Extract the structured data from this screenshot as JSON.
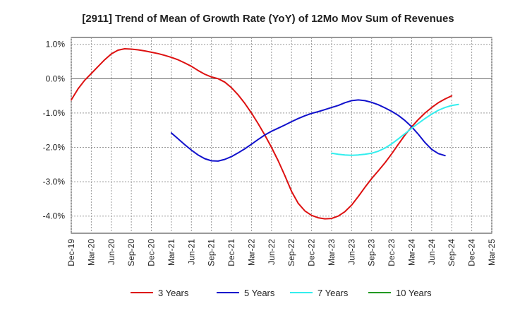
{
  "chart_data": {
    "type": "line",
    "title": "[2911]  Trend of Mean of Growth Rate (YoY) of 12Mo Mov Sum of Revenues",
    "xlabel": "",
    "ylabel": "",
    "ylim": [
      -4.5,
      1.2
    ],
    "yticks": [
      1.0,
      0.0,
      -1.0,
      -2.0,
      -3.0,
      -4.0
    ],
    "ytick_labels": [
      "1.0%",
      "0.0%",
      "-1.0%",
      "-2.0%",
      "-3.0%",
      "-4.0%"
    ],
    "x_tick_labels": [
      "Dec-19",
      "Mar-20",
      "Jun-20",
      "Sep-20",
      "Dec-20",
      "Mar-21",
      "Jun-21",
      "Sep-21",
      "Dec-21",
      "Mar-22",
      "Jun-22",
      "Sep-22",
      "Dec-22",
      "Mar-23",
      "Jun-23",
      "Sep-23",
      "Dec-23",
      "Mar-24",
      "Jun-24",
      "Sep-24",
      "Dec-24",
      "Mar-25"
    ],
    "grid": true,
    "legend_position": "bottom",
    "series": [
      {
        "name": "3 Years",
        "color": "#dd1111",
        "start_month": 0,
        "values": [
          -0.62,
          -0.3,
          -0.05,
          0.15,
          0.35,
          0.55,
          0.72,
          0.83,
          0.87,
          0.86,
          0.84,
          0.81,
          0.77,
          0.73,
          0.68,
          0.62,
          0.55,
          0.46,
          0.36,
          0.24,
          0.13,
          0.05,
          0.0,
          -0.1,
          -0.26,
          -0.47,
          -0.72,
          -1.0,
          -1.31,
          -1.64,
          -2.0,
          -2.39,
          -2.82,
          -3.28,
          -3.63,
          -3.85,
          -3.98,
          -4.05,
          -4.08,
          -4.07,
          -4.0,
          -3.87,
          -3.68,
          -3.43,
          -3.16,
          -2.91,
          -2.68,
          -2.45,
          -2.19,
          -1.91,
          -1.64,
          -1.4,
          -1.19,
          -1.0,
          -0.84,
          -0.7,
          -0.59,
          -0.5
        ]
      },
      {
        "name": "5 Years",
        "color": "#1111cc",
        "start_month": 15,
        "values": [
          -1.58,
          -1.75,
          -1.92,
          -2.08,
          -2.22,
          -2.33,
          -2.39,
          -2.4,
          -2.35,
          -2.27,
          -2.16,
          -2.04,
          -1.91,
          -1.77,
          -1.64,
          -1.53,
          -1.44,
          -1.35,
          -1.25,
          -1.16,
          -1.08,
          -1.01,
          -0.96,
          -0.9,
          -0.84,
          -0.78,
          -0.7,
          -0.64,
          -0.62,
          -0.64,
          -0.69,
          -0.76,
          -0.85,
          -0.95,
          -1.07,
          -1.22,
          -1.4,
          -1.62,
          -1.86,
          -2.06,
          -2.18,
          -2.24
        ]
      },
      {
        "name": "7 Years",
        "color": "#33eeee",
        "start_month": 39,
        "values": [
          -2.17,
          -2.2,
          -2.22,
          -2.23,
          -2.22,
          -2.2,
          -2.17,
          -2.11,
          -2.02,
          -1.9,
          -1.75,
          -1.6,
          -1.44,
          -1.3,
          -1.16,
          -1.03,
          -0.92,
          -0.84,
          -0.78,
          -0.75
        ]
      },
      {
        "name": "10 Years",
        "color": "#229922",
        "start_month": 0,
        "values": []
      }
    ]
  }
}
